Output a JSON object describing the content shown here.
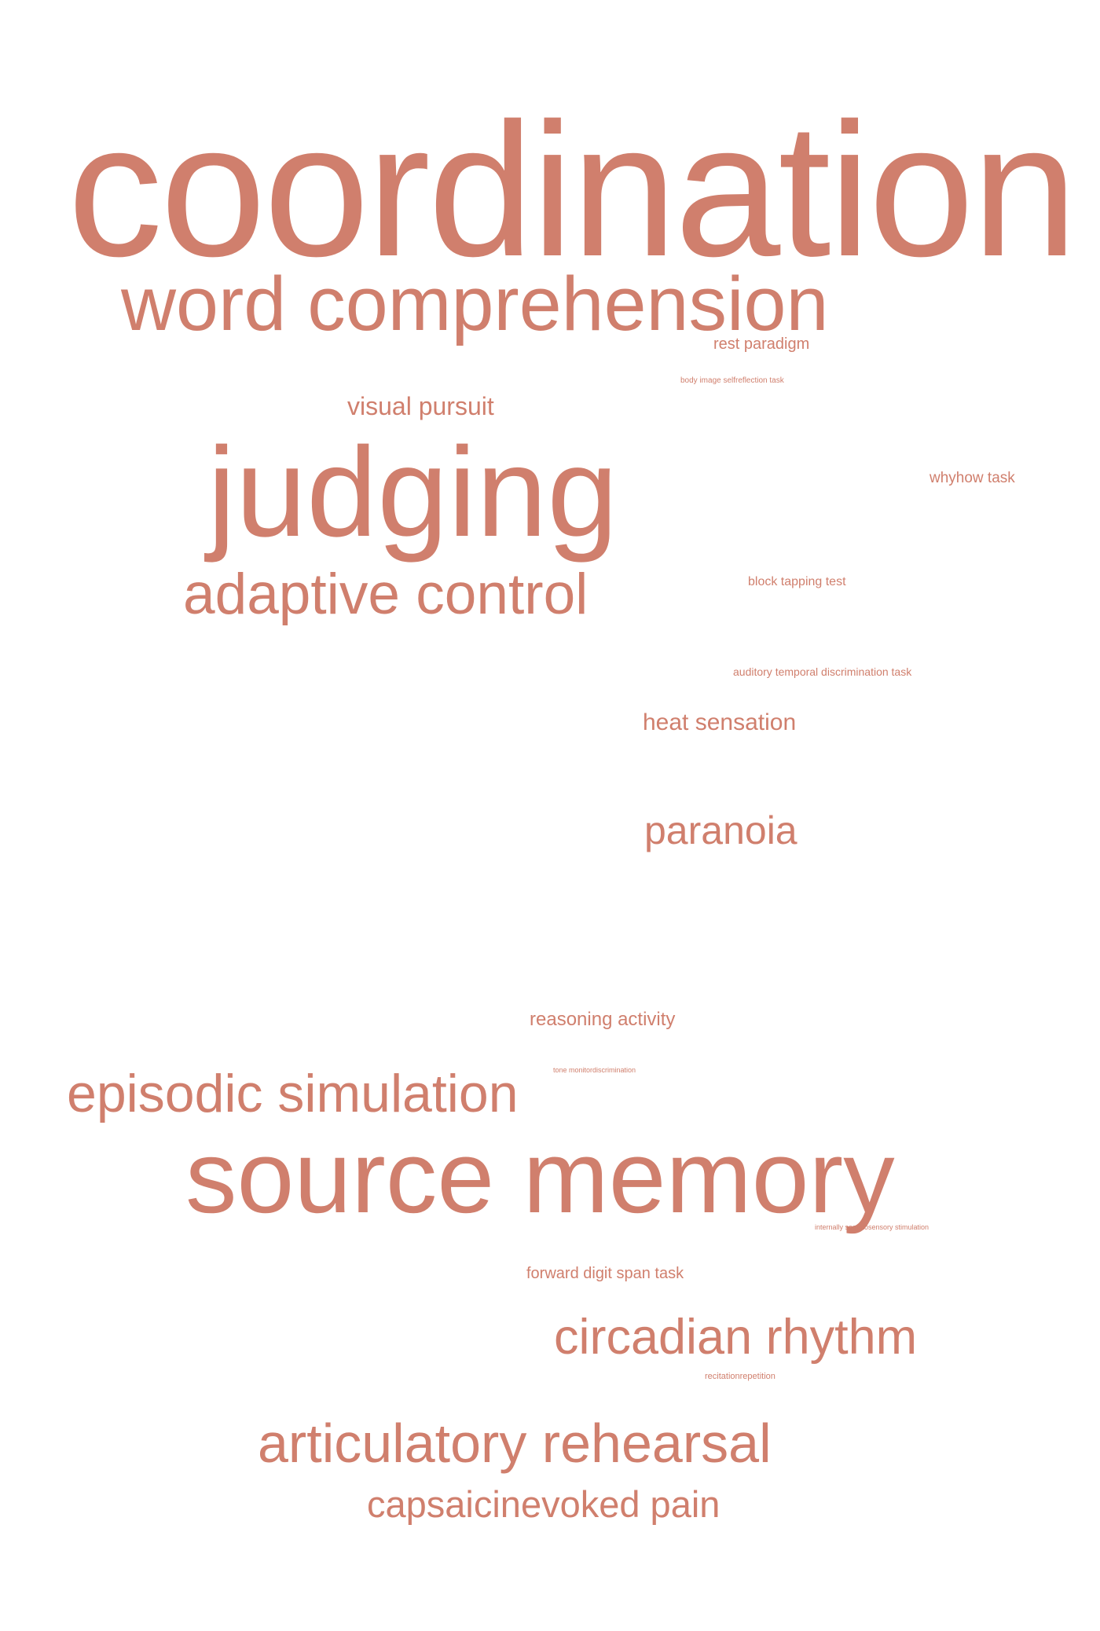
{
  "cloud": {
    "color": "#d07f6d",
    "background": "#ffffff",
    "words": [
      "coordination",
      "word comprehension",
      "rest paradigm",
      "body image selfreflection task",
      "visual pursuit",
      "judging",
      "whyhow task",
      "adaptive control",
      "block tapping test",
      "auditory temporal discrimination task",
      "heat sensation",
      "paranoia",
      "reasoning activity",
      "tone monitordiscrimination",
      "episodic simulation",
      "source memory",
      "internally somatosensory stimulation",
      "forward digit span task",
      "circadian rhythm",
      "recitationrepetition",
      "articulatory rehearsal",
      "capsaicinevoked pain"
    ]
  }
}
